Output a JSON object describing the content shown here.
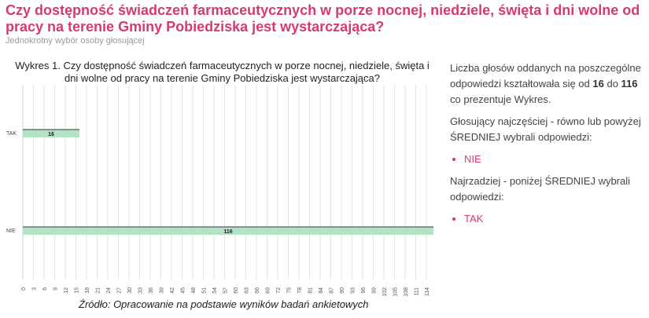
{
  "header": {
    "title": "Czy dostępność świadczeń farmaceutycznych w porze nocnej, niedziele, święta i dni wolne od pracy na terenie Gminy Pobiedziska jest wystarczająca?",
    "subtitle": "Jednokrotny wybór osoby głosującej"
  },
  "chart_title": "Wykres 1. Czy dostępność świadczeń farmaceutycznych w porze nocnej, niedziele, święta i dni wolne od pracy na terenie Gminy Pobiedziska jest wystarczająca?",
  "source": "Źródło: Opracowanie na podstawie wyników badań ankietowych",
  "side": {
    "p1_a": "Liczba głosów oddanych na poszczególne odpowiedzi kształtowała się od ",
    "p1_min": "16",
    "p1_b": " do ",
    "p1_max": "116",
    "p1_c": " co prezentuje Wykres.",
    "p2": "Głosujący najczęściej - równo lub powyżej ŚREDNIEJ wybrali odpowiedzi:",
    "most": [
      "NIE"
    ],
    "p3": "Najrzadziej - poniżej ŚREDNIEJ wybrali odpowiedzi:",
    "least": [
      "TAK"
    ]
  },
  "colors": {
    "title": "#d63b6a",
    "bar_fill": "#b3e2c7",
    "bar_top": "#333333",
    "grid": "#e2e2e2"
  },
  "chart_data": {
    "type": "bar",
    "orientation": "horizontal",
    "categories": [
      "TAK",
      "NIE"
    ],
    "values": [
      16,
      116
    ],
    "xlim": [
      0,
      116
    ],
    "xticks": [
      0,
      3,
      6,
      9,
      12,
      15,
      18,
      21,
      24,
      27,
      30,
      33,
      36,
      39,
      42,
      45,
      48,
      51,
      54,
      57,
      60,
      63,
      66,
      69,
      72,
      75,
      78,
      81,
      84,
      87,
      90,
      93,
      96,
      99,
      102,
      105,
      108,
      111,
      114
    ],
    "grid": true,
    "data_labels": true
  }
}
